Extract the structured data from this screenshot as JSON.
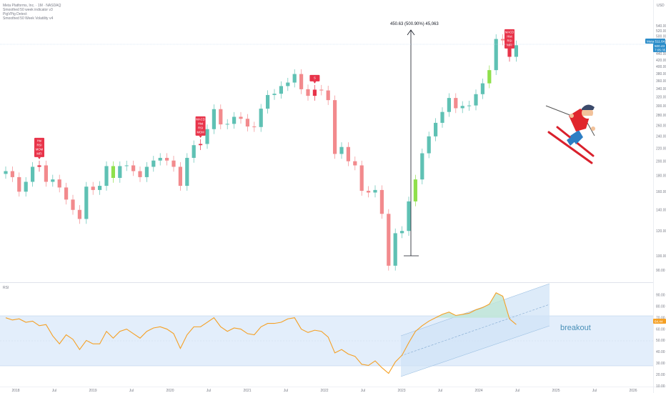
{
  "header": {
    "title": "Meta Platforms, Inc. · 1M · NASDAQ",
    "legend_lines": [
      "Smoothed 50 week indicator v3",
      "PigVPig Detect",
      "Smoothed 50 Week Volatility v4"
    ],
    "currency": "USD"
  },
  "price_axis": {
    "ticks": [
      "540.00",
      "520.00",
      "500.00",
      "480.00",
      "460.00",
      "440.00",
      "420.00",
      "400.00",
      "380.00",
      "360.00",
      "340.00",
      "320.00",
      "300.00",
      "280.00",
      "260.00",
      "240.00",
      "220.00",
      "200.00",
      "180.00",
      "160.00",
      "140.00",
      "120.00",
      "100.00",
      "90.00"
    ],
    "current_price_label": "Meta 511.64",
    "current_price": "500.43",
    "current_time": "7:05:35"
  },
  "rsi_axis": {
    "ticks": [
      "100.00",
      "90.00",
      "80.00",
      "70.00",
      "60.00",
      "50.00",
      "40.00",
      "30.00",
      "20.00",
      "10.00"
    ],
    "current_value": "64.44",
    "label": "RSI"
  },
  "time_axis": {
    "ticks": [
      "2018",
      "Jul",
      "2019",
      "Jul",
      "2020",
      "Jul",
      "2021",
      "Jul",
      "2022",
      "Jul",
      "2023",
      "Jul",
      "2024",
      "Jul",
      "2025",
      "Jul",
      "2026"
    ]
  },
  "measure": {
    "label": "450.63 (500.90%) 45,063"
  },
  "annotations": {
    "breakout": "breakout"
  },
  "signals": [
    {
      "lines": [
        "Hsi",
        "RSI",
        "MOM",
        "MFI"
      ]
    },
    {
      "lines": [
        "MACD",
        "Hist",
        "RSI",
        "MOM"
      ]
    },
    {
      "lines": [
        "S"
      ]
    },
    {
      "lines": [
        "MACD",
        "Hist",
        "RSI",
        "MFI"
      ]
    }
  ],
  "colors": {
    "up": "#5fc1b4",
    "down": "#f28a8d",
    "signal": "#e8344a",
    "rsi_line": "#f5a024",
    "rsi_band": "#e3eefb",
    "channel": "#cfe3f7",
    "price_tag": "#2a8cc9",
    "rsi_tag": "#f5a024",
    "lime": "#8fe04c"
  },
  "chart_data": [
    {
      "type": "candlestick",
      "series_name": "Meta Platforms, Inc.",
      "x": [
        "2018-01",
        "2018-02",
        "2018-03",
        "2018-04",
        "2018-05",
        "2018-06",
        "2018-07",
        "2018-08",
        "2018-09",
        "2018-10",
        "2018-11",
        "2018-12",
        "2019-01",
        "2019-02",
        "2019-03",
        "2019-04",
        "2019-05",
        "2019-06",
        "2019-07",
        "2019-08",
        "2019-09",
        "2019-10",
        "2019-11",
        "2019-12",
        "2020-01",
        "2020-02",
        "2020-03",
        "2020-04",
        "2020-05",
        "2020-06",
        "2020-07",
        "2020-08",
        "2020-09",
        "2020-10",
        "2020-11",
        "2020-12",
        "2021-01",
        "2021-02",
        "2021-03",
        "2021-04",
        "2021-05",
        "2021-06",
        "2021-07",
        "2021-08",
        "2021-09",
        "2021-10",
        "2021-11",
        "2021-12",
        "2022-01",
        "2022-02",
        "2022-03",
        "2022-04",
        "2022-05",
        "2022-06",
        "2022-07",
        "2022-08",
        "2022-09",
        "2022-10",
        "2022-11",
        "2022-12",
        "2023-01",
        "2023-02",
        "2023-03",
        "2023-04",
        "2023-05",
        "2023-06",
        "2023-07",
        "2023-08",
        "2023-09",
        "2023-10",
        "2023-11",
        "2023-12",
        "2024-01",
        "2024-02",
        "2024-03",
        "2024-04",
        "2024-05"
      ],
      "close": [
        186,
        178,
        160,
        172,
        192,
        194,
        172,
        175,
        165,
        151,
        140,
        131,
        166,
        162,
        167,
        193,
        177,
        193,
        194,
        186,
        178,
        192,
        201,
        205,
        201,
        192,
        167,
        205,
        225,
        227,
        253,
        293,
        262,
        263,
        277,
        273,
        258,
        257,
        294,
        325,
        328,
        347,
        356,
        379,
        339,
        323,
        338,
        336,
        313,
        211,
        222,
        200,
        194,
        161,
        159,
        162,
        136,
        93,
        118,
        120,
        149,
        175,
        212,
        240,
        265,
        287,
        318,
        295,
        300,
        301,
        327,
        354,
        390,
        490,
        485,
        430,
        468
      ],
      "ylim": [
        80,
        550
      ],
      "unit": "USD"
    },
    {
      "type": "line",
      "series_name": "RSI",
      "values": [
        70,
        68,
        69,
        66,
        67,
        63,
        64,
        54,
        47,
        55,
        51,
        42,
        50,
        47,
        47,
        58,
        52,
        58,
        60,
        56,
        52,
        58,
        61,
        62,
        60,
        56,
        43,
        55,
        62,
        62,
        66,
        70,
        62,
        58,
        61,
        60,
        56,
        55,
        62,
        65,
        65,
        66,
        69,
        70,
        60,
        57,
        59,
        58,
        53,
        39,
        42,
        38,
        36,
        29,
        28,
        32,
        26,
        21,
        31,
        37,
        48,
        58,
        63,
        67,
        70,
        73,
        75,
        72,
        73,
        74,
        77,
        79,
        82,
        92,
        89,
        69,
        64
      ],
      "ylim": [
        10,
        100
      ],
      "band": [
        30,
        70
      ],
      "title": "RSI"
    }
  ]
}
